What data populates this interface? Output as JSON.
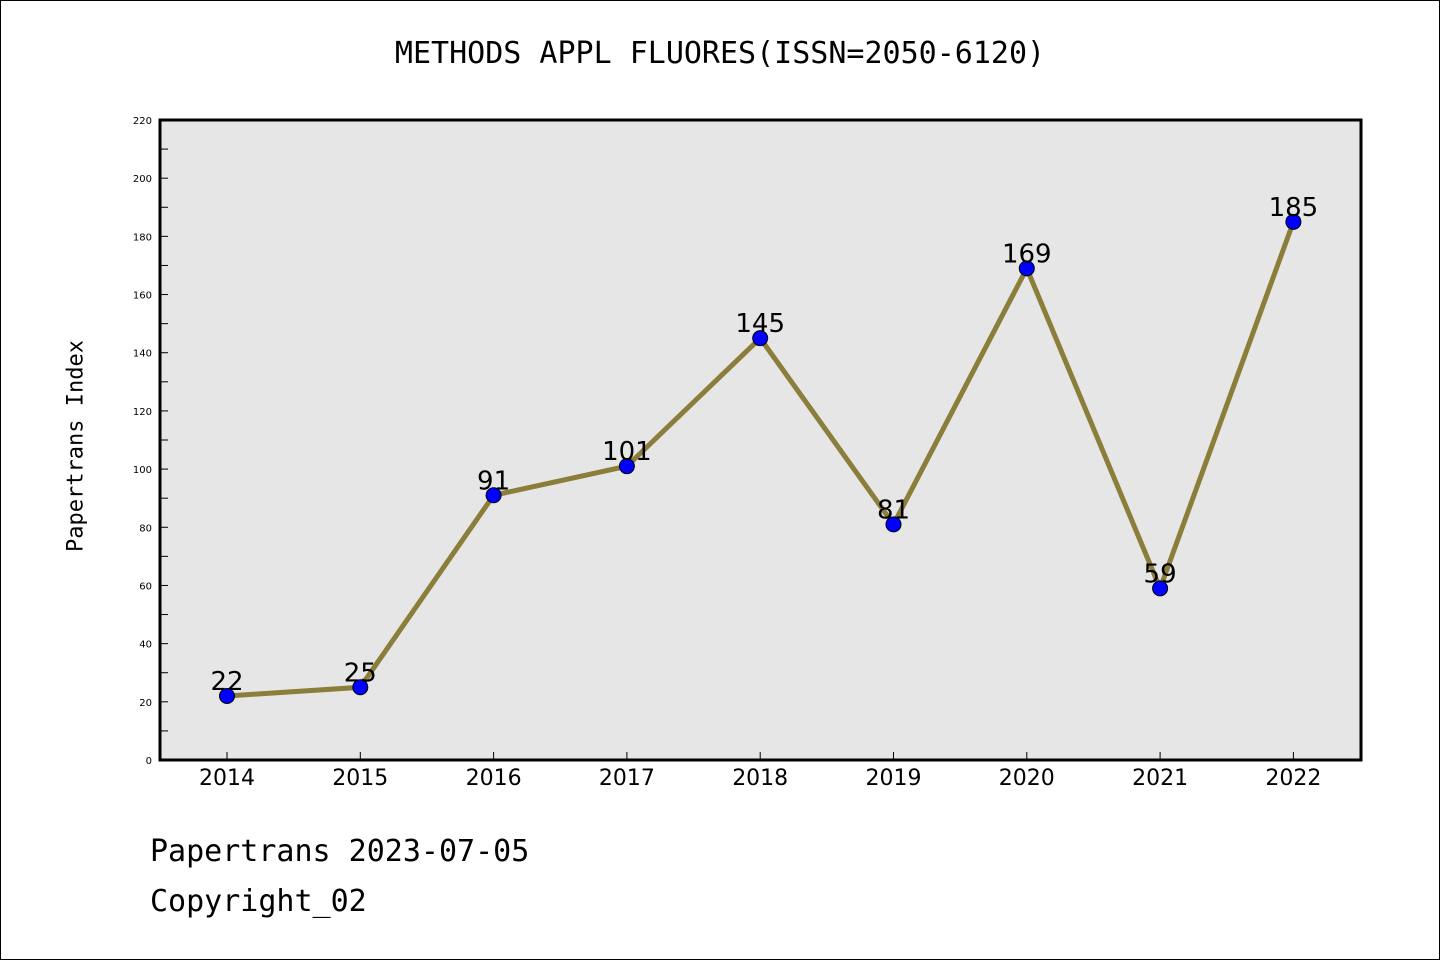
{
  "chart_data": {
    "type": "line",
    "title": "METHODS APPL FLUORES(ISSN=2050-6120)",
    "xlabel": "",
    "ylabel": "Papertrans Index",
    "categories": [
      "2014",
      "2015",
      "2016",
      "2017",
      "2018",
      "2019",
      "2020",
      "2021",
      "2022"
    ],
    "series": [
      {
        "values": [
          22,
          25,
          91,
          101,
          145,
          81,
          169,
          59,
          185
        ]
      }
    ],
    "ylim": [
      0,
      220
    ],
    "yticks": [
      0,
      20,
      40,
      60,
      80,
      100,
      120,
      140,
      160,
      180,
      200,
      220
    ],
    "grid": false,
    "colors": {
      "line": "#8B7D3A",
      "marker": "#0000FF",
      "plot_background": "#E6E6E6"
    }
  },
  "footer": {
    "line1": "Papertrans 2023-07-05",
    "line2": "Copyright_02"
  }
}
